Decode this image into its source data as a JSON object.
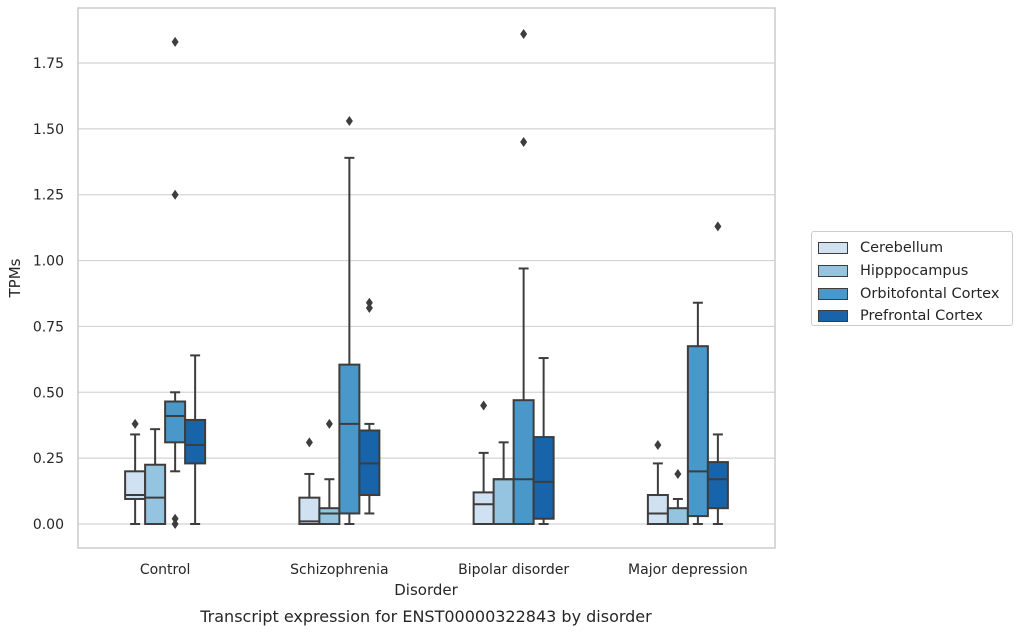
{
  "chart_data": {
    "type": "box",
    "xlabel": "Disorder",
    "ylabel": "TPMs",
    "caption": "Transcript expression for ENST00000322843 by disorder",
    "ylim": [
      -0.09,
      1.95
    ],
    "yticks": [
      0.0,
      0.25,
      0.5,
      0.75,
      1.0,
      1.25,
      1.5,
      1.75
    ],
    "ytick_labels": [
      "0.00",
      "0.25",
      "0.50",
      "0.75",
      "1.00",
      "1.25",
      "1.50",
      "1.75"
    ],
    "grid": "horizontal",
    "legend_position": "outside-right",
    "categories": [
      "Control",
      "Schizophrenia",
      "Bipolar disorder",
      "Major depression"
    ],
    "series": [
      {
        "name": "Cerebellum",
        "color": "#d0e1f2",
        "boxes": [
          {
            "whislo": 0.0,
            "q1": 0.095,
            "med": 0.11,
            "q3": 0.2,
            "whishi": 0.34,
            "fliers": [
              0.38
            ]
          },
          {
            "whislo": 0.0,
            "q1": 0.0,
            "med": 0.01,
            "q3": 0.1,
            "whishi": 0.19,
            "fliers": [
              0.31
            ]
          },
          {
            "whislo": 0.0,
            "q1": 0.0,
            "med": 0.075,
            "q3": 0.12,
            "whishi": 0.27,
            "fliers": [
              0.45
            ]
          },
          {
            "whislo": 0.0,
            "q1": 0.0,
            "med": 0.04,
            "q3": 0.11,
            "whishi": 0.23,
            "fliers": [
              0.3
            ]
          }
        ]
      },
      {
        "name": "Hipppocampus",
        "color": "#94c4df",
        "boxes": [
          {
            "whislo": 0.0,
            "q1": 0.0,
            "med": 0.1,
            "q3": 0.225,
            "whishi": 0.36,
            "fliers": []
          },
          {
            "whislo": 0.0,
            "q1": 0.0,
            "med": 0.04,
            "q3": 0.06,
            "whishi": 0.17,
            "fliers": [
              0.38
            ]
          },
          {
            "whislo": 0.0,
            "q1": 0.0,
            "med": 0.17,
            "q3": 0.17,
            "whishi": 0.31,
            "fliers": []
          },
          {
            "whislo": 0.0,
            "q1": 0.0,
            "med": 0.0,
            "q3": 0.06,
            "whishi": 0.095,
            "fliers": [
              0.19
            ]
          }
        ]
      },
      {
        "name": "Orbitofontal Cortex",
        "color": "#4a98c9",
        "boxes": [
          {
            "whislo": 0.2,
            "q1": 0.31,
            "med": 0.41,
            "q3": 0.465,
            "whishi": 0.5,
            "fliers": [
              1.83,
              1.25,
              0.02,
              0.0
            ]
          },
          {
            "whislo": 0.0,
            "q1": 0.04,
            "med": 0.38,
            "q3": 0.605,
            "whishi": 1.39,
            "fliers": [
              1.53
            ]
          },
          {
            "whislo": 0.0,
            "q1": 0.0,
            "med": 0.17,
            "q3": 0.47,
            "whishi": 0.97,
            "fliers": [
              1.86,
              1.45
            ]
          },
          {
            "whislo": 0.0,
            "q1": 0.03,
            "med": 0.2,
            "q3": 0.675,
            "whishi": 0.84,
            "fliers": []
          }
        ]
      },
      {
        "name": "Prefrontal Cortex",
        "color": "#1764ab",
        "boxes": [
          {
            "whislo": 0.0,
            "q1": 0.23,
            "med": 0.3,
            "q3": 0.395,
            "whishi": 0.64,
            "fliers": []
          },
          {
            "whislo": 0.04,
            "q1": 0.11,
            "med": 0.23,
            "q3": 0.355,
            "whishi": 0.38,
            "fliers": [
              0.84,
              0.82
            ]
          },
          {
            "whislo": 0.0,
            "q1": 0.02,
            "med": 0.16,
            "q3": 0.33,
            "whishi": 0.63,
            "fliers": []
          },
          {
            "whislo": 0.0,
            "q1": 0.06,
            "med": 0.17,
            "q3": 0.235,
            "whishi": 0.34,
            "fliers": [
              1.13
            ]
          }
        ]
      }
    ]
  }
}
